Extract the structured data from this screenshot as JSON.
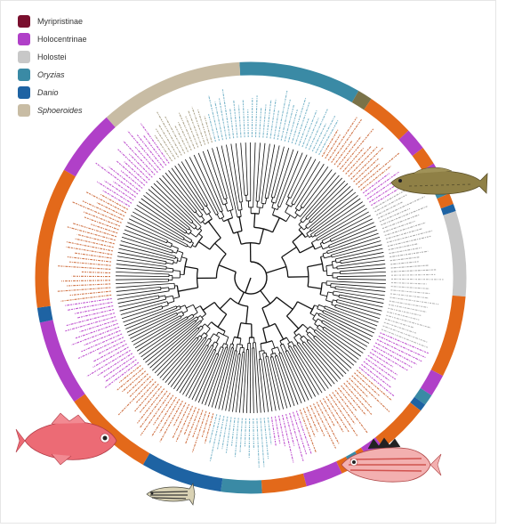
{
  "legend": [
    {
      "label": "Myripristinae",
      "color": "#7a0f2e",
      "italic": false
    },
    {
      "label": "Holocentrinae",
      "color": "#b040c8",
      "italic": false
    },
    {
      "label": "Holostei",
      "color": "#c8c8c8",
      "italic": false
    },
    {
      "label": "Oryzias",
      "color": "#3a8aa5",
      "italic": true
    },
    {
      "label": "Danio",
      "color": "#1e63a3",
      "italic": true
    },
    {
      "label": "Sphoeroides",
      "color": "#c8bca4",
      "italic": true
    }
  ],
  "colors": {
    "orange": "#e3691a",
    "purple": "#b040c8",
    "grey": "#c8c8c8",
    "teal": "#3a8aa5",
    "blue": "#1e63a3",
    "beige": "#c8bca4",
    "olive": "#7a7248",
    "maroon": "#7a0f2e",
    "branch": "#111111"
  },
  "ring_segments": [
    {
      "group": "Oryzias",
      "start": 357,
      "end": 30
    },
    {
      "group": "olive",
      "start": 30,
      "end": 34
    },
    {
      "group": "orange",
      "start": 34,
      "end": 47
    },
    {
      "group": "Holocentrinae",
      "start": 47,
      "end": 53
    },
    {
      "group": "orange",
      "start": 53,
      "end": 58
    },
    {
      "group": "Holocentrinae",
      "start": 58,
      "end": 63
    },
    {
      "group": "Oryzias",
      "start": 63,
      "end": 67
    },
    {
      "group": "orange",
      "start": 67,
      "end": 70
    },
    {
      "group": "Danio",
      "start": 70,
      "end": 72
    },
    {
      "group": "Holostei",
      "start": 72,
      "end": 95
    },
    {
      "group": "orange",
      "start": 95,
      "end": 117
    },
    {
      "group": "Holocentrinae",
      "start": 117,
      "end": 123
    },
    {
      "group": "Oryzias",
      "start": 123,
      "end": 126
    },
    {
      "group": "Danio",
      "start": 126,
      "end": 128
    },
    {
      "group": "orange",
      "start": 128,
      "end": 142
    },
    {
      "group": "Holocentrinae",
      "start": 142,
      "end": 147
    },
    {
      "group": "orange",
      "start": 147,
      "end": 149
    },
    {
      "group": "Oryzias",
      "start": 149,
      "end": 152
    },
    {
      "group": "orange",
      "start": 152,
      "end": 155
    },
    {
      "group": "Holocentrinae",
      "start": 155,
      "end": 165
    },
    {
      "group": "orange",
      "start": 165,
      "end": 177
    },
    {
      "group": "Oryzias",
      "start": 177,
      "end": 188
    },
    {
      "group": "Danio",
      "start": 188,
      "end": 210
    },
    {
      "group": "orange",
      "start": 210,
      "end": 235
    },
    {
      "group": "Holocentrinae",
      "start": 235,
      "end": 258
    },
    {
      "group": "Danio",
      "start": 258,
      "end": 262
    },
    {
      "group": "orange",
      "start": 262,
      "end": 300
    },
    {
      "group": "Holocentrinae",
      "start": 300,
      "end": 318
    },
    {
      "group": "Sphoeroides",
      "start": 318,
      "end": 357
    }
  ],
  "label_sectors": [
    {
      "start": 22,
      "end": 30,
      "color": "#7fb8cc"
    },
    {
      "start": 30,
      "end": 52,
      "color": "#d0764a"
    },
    {
      "start": 52,
      "end": 60,
      "color": "#c056d0"
    },
    {
      "start": 60,
      "end": 88,
      "color": "#a8a8a8"
    },
    {
      "start": 88,
      "end": 112,
      "color": "#b5b5b5"
    },
    {
      "start": 112,
      "end": 130,
      "color": "#c056d0"
    },
    {
      "start": 130,
      "end": 160,
      "color": "#d0764a"
    },
    {
      "start": 160,
      "end": 172,
      "color": "#c056d0"
    },
    {
      "start": 172,
      "end": 195,
      "color": "#7fb8cc"
    },
    {
      "start": 195,
      "end": 232,
      "color": "#d0764a"
    },
    {
      "start": 232,
      "end": 262,
      "color": "#c056d0"
    },
    {
      "start": 262,
      "end": 300,
      "color": "#d0764a"
    },
    {
      "start": 300,
      "end": 325,
      "color": "#c056d0"
    },
    {
      "start": 325,
      "end": 345,
      "color": "#b0a890"
    },
    {
      "start": 345,
      "end": 360,
      "color": "#7fb8cc"
    },
    {
      "start": 0,
      "end": 22,
      "color": "#7fb8cc"
    }
  ],
  "fish": [
    {
      "name": "goby-fish-image",
      "color": "#8a7a40"
    },
    {
      "name": "squirrelfish-image",
      "color": "#e5616a"
    },
    {
      "name": "zebrafish-image",
      "color": "#6a6a5a"
    },
    {
      "name": "striped-squirrelfish-image",
      "color": "#e08080"
    }
  ]
}
